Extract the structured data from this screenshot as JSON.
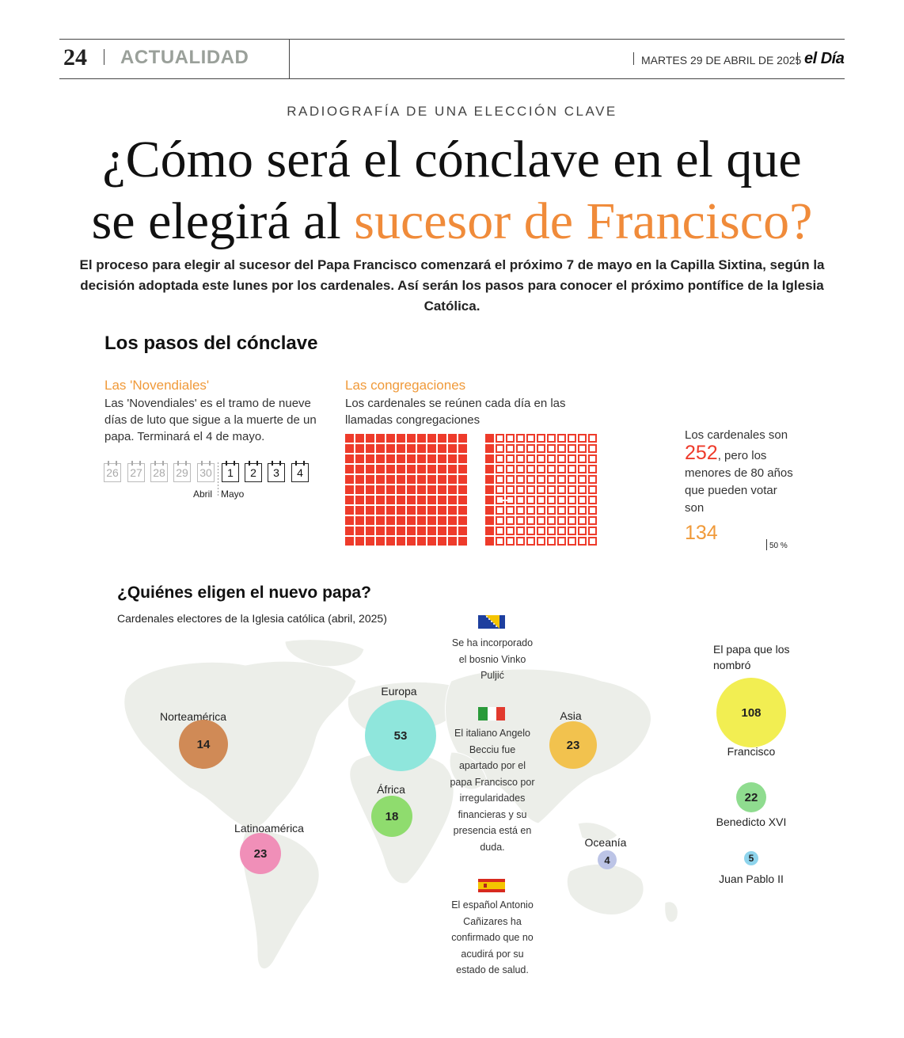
{
  "header": {
    "page_number": "24",
    "section": "ACTUALIDAD",
    "date": "MARTES 29 DE ABRIL DE 2025",
    "logo": "el Día"
  },
  "article": {
    "kicker": "RADIOGRAFÍA DE UNA ELECCIÓN CLAVE",
    "title_line1": "¿Cómo será el cónclave en el que",
    "title_line2_plain": "se elegirá al",
    "title_line2_accent": "sucesor de Francisco?",
    "lead": "El proceso para elegir al sucesor del Papa Francisco comenzará el próximo 7 de mayo en la Capilla Sixtina, según la decisión adoptada este lunes por los cardenales. Así serán los pasos para conocer el próximo pontífice de la Iglesia Católica."
  },
  "steps": {
    "heading": "Los pasos del cónclave",
    "novendiales": {
      "title": "Las 'Novendiales'",
      "text": "Las 'Novendiales' es el tramo de nueve días de luto que sigue a la muerte de un papa. Terminará el 4 de mayo.",
      "days_april": [
        "26",
        "27",
        "28",
        "29",
        "30"
      ],
      "days_may": [
        "1",
        "2",
        "3",
        "4"
      ],
      "month_april": "Abril",
      "month_may": "Mayo"
    },
    "congregaciones": {
      "title": "Las congregaciones",
      "text": "Los cardenales se reúnen cada día en las llamadas congregaciones",
      "total_label": "Los cardenales son",
      "total": "252",
      "electors_label": ", pero los menores de 80 años que pueden votar son",
      "electors": "134",
      "threshold_label": "50 %",
      "colors": {
        "cardinal": "#ee3b2b",
        "total_number": "#ee3b2b",
        "electors_number": "#f09a3a"
      }
    }
  },
  "electors": {
    "heading": "¿Quiénes eligen el nuevo papa?",
    "subheading": "Cardenales electores de la Iglesia católica (abril, 2025)",
    "regions": [
      {
        "name": "Norteamérica",
        "value": "14",
        "color": "#d08a56"
      },
      {
        "name": "Latinoamérica",
        "value": "23",
        "color": "#f08fb8"
      },
      {
        "name": "Europa",
        "value": "53",
        "color": "#8fe6dc"
      },
      {
        "name": "África",
        "value": "18",
        "color": "#8fdc6e"
      },
      {
        "name": "Asia",
        "value": "23",
        "color": "#f2c24e"
      },
      {
        "name": "Oceanía",
        "value": "4",
        "color": "#bcc4e6"
      }
    ],
    "notes": [
      {
        "flag": "bosnia-flag-icon",
        "text": "Se ha incorporado el bosnio Vinko Puljić"
      },
      {
        "flag": "italy-flag-icon",
        "text": "El italiano Angelo Becciu fue apartado por el papa Francisco por irregularidades financieras y su presencia está en duda."
      },
      {
        "flag": "spain-flag-icon",
        "text": "El español Antonio Cañizares ha confirmado que no acudirá por su estado de salud."
      }
    ],
    "popes_heading": "El papa que los nombró",
    "popes": [
      {
        "name": "Francisco",
        "value": "108",
        "color": "#f2ee52"
      },
      {
        "name": "Benedicto XVI",
        "value": "22",
        "color": "#8fdc8f"
      },
      {
        "name": "Juan Pablo II",
        "value": "5",
        "color": "#8ed4ec"
      }
    ]
  }
}
